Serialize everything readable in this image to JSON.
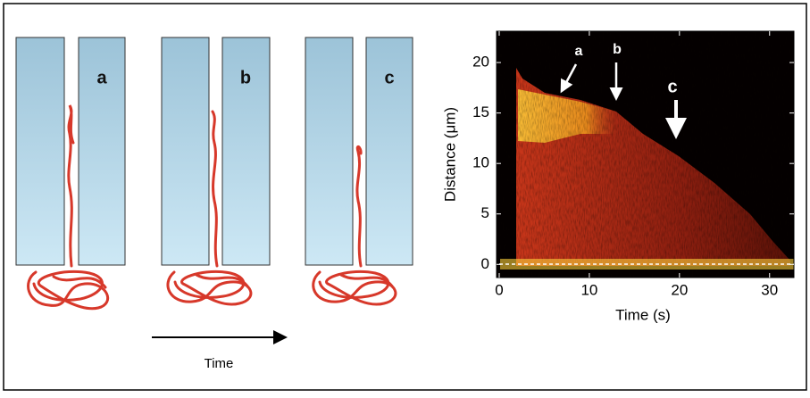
{
  "panels": [
    {
      "label": "a"
    },
    {
      "label": "b"
    },
    {
      "label": "c"
    }
  ],
  "time_arrow_label": "Time",
  "kymograph": {
    "xlabel": "Time (s)",
    "ylabel": "Distance (μm)",
    "xlim": [
      0,
      32.7
    ],
    "ylim": [
      -1.3,
      23.1
    ],
    "xticks": [
      0,
      10,
      20,
      30
    ],
    "yticks": [
      0,
      5,
      10,
      15,
      20
    ],
    "arrows": [
      "a",
      "b",
      "c"
    ]
  }
}
